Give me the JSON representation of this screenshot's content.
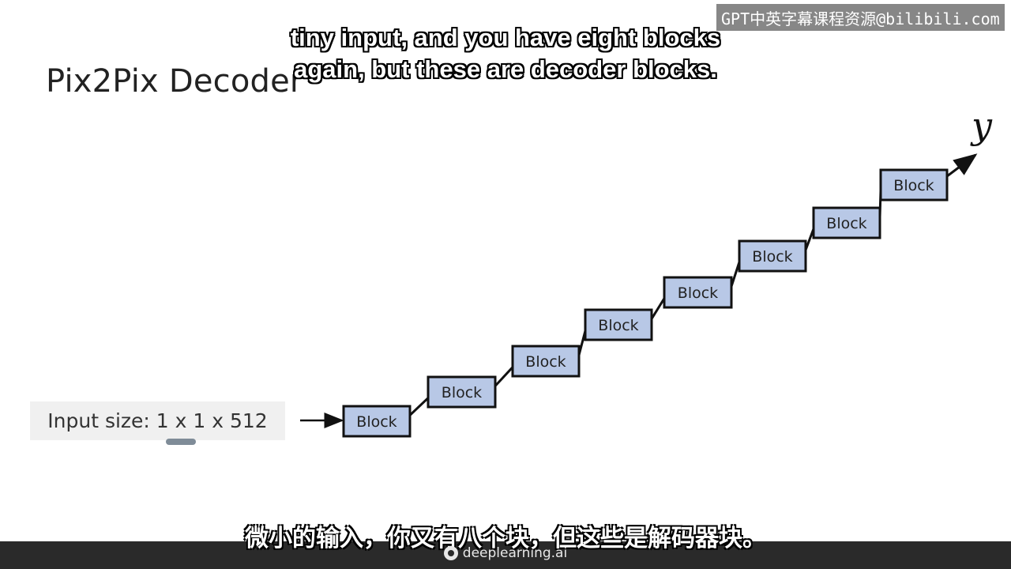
{
  "slide": {
    "title": "Pix2Pix Decoder",
    "input_label": "Input size: 1 x 1 x 512",
    "output_label": "y",
    "blocks": [
      "Block",
      "Block",
      "Block",
      "Block",
      "Block",
      "Block",
      "Block",
      "Block"
    ],
    "block_fill": "#b8c8e6",
    "block_stroke": "#111111"
  },
  "subtitles": {
    "english_line1": "tiny input, and you have eight blocks",
    "english_line2": "again, but these are decoder blocks.",
    "chinese": "微小的输入，你又有八个块，但这些是解码器块。"
  },
  "watermark": {
    "text": "GPT中英字幕课程资源@bilibili.com"
  },
  "footer": {
    "brand": "deeplearning.ai"
  }
}
